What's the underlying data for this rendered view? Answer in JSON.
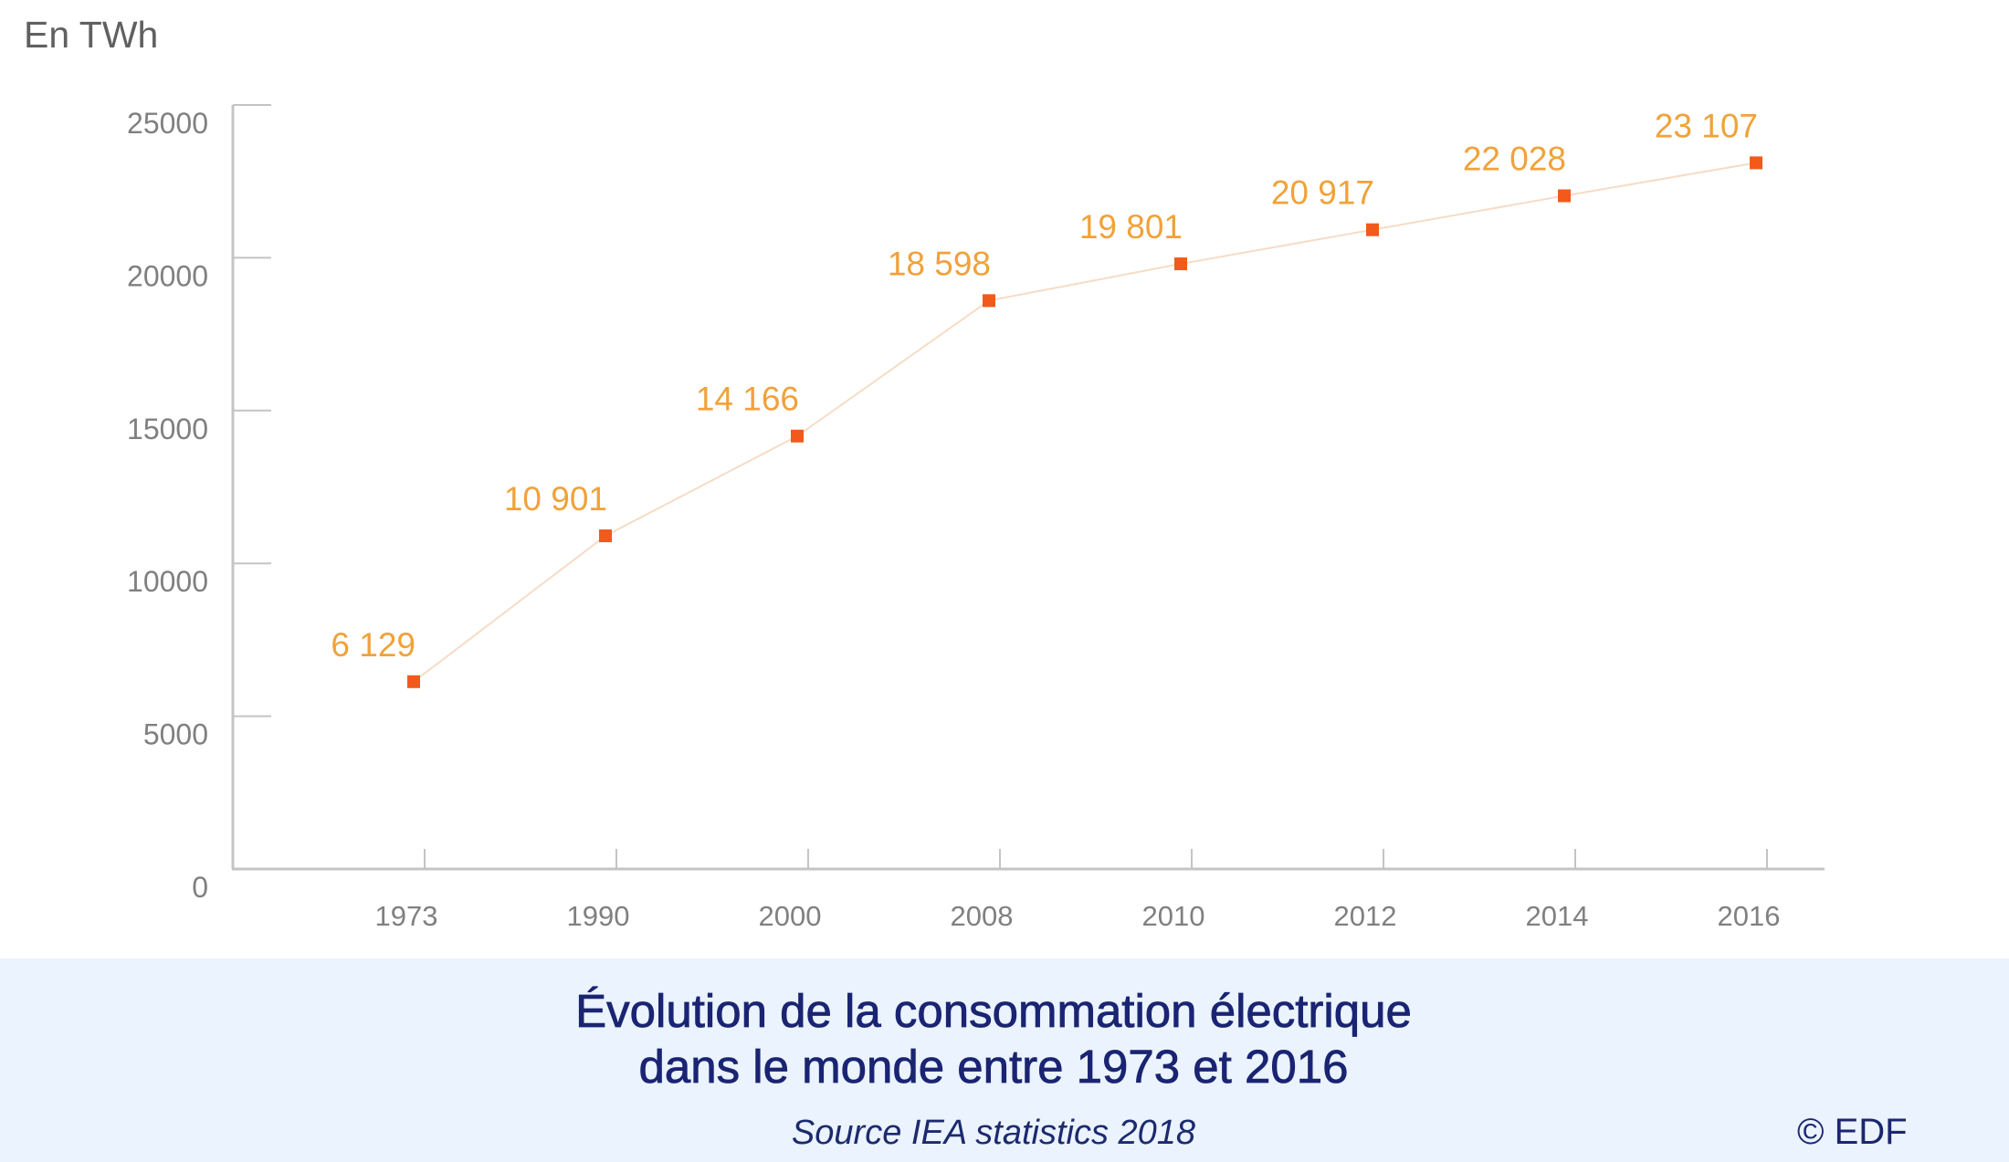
{
  "chart_data": {
    "type": "line",
    "title": "Évolution de la consommation électrique",
    "subtitle": "dans le monde entre 1973 et 2016",
    "ylabel": "En TWh",
    "xlabel": "",
    "categories": [
      "1973",
      "1990",
      "2000",
      "2008",
      "2010",
      "2012",
      "2014",
      "2016"
    ],
    "series": [
      {
        "name": "Consommation électrique mondiale",
        "values": [
          6129,
          10901,
          14166,
          18598,
          19801,
          20917,
          22028,
          23107
        ],
        "data_labels": [
          "6 129",
          "10 901",
          "14 166",
          "18 598",
          "19 801",
          "20 917",
          "22 028",
          "23 107"
        ]
      }
    ],
    "yticks": [
      0,
      5000,
      10000,
      15000,
      20000,
      25000
    ],
    "ytick_labels": [
      "0",
      "5000",
      "10000",
      "15000",
      "20000",
      "25000"
    ],
    "ylim": [
      0,
      25000
    ],
    "grid": false,
    "legend": "none",
    "colors": {
      "marker": "#f25a1c",
      "line": "#f6dcc6",
      "data_label": "#f0a23a",
      "axis": "#c4c4c4",
      "tick_label": "#808080"
    }
  },
  "header": {
    "unit": "En TWh"
  },
  "footer": {
    "title_line1": "Évolution de la consommation électrique",
    "title_line2": "dans le monde entre 1973 et 2016",
    "source": "Source IEA statistics 2018",
    "copyright": "© EDF",
    "band_color": "#eaf3fe",
    "title_color": "#1a2472"
  }
}
